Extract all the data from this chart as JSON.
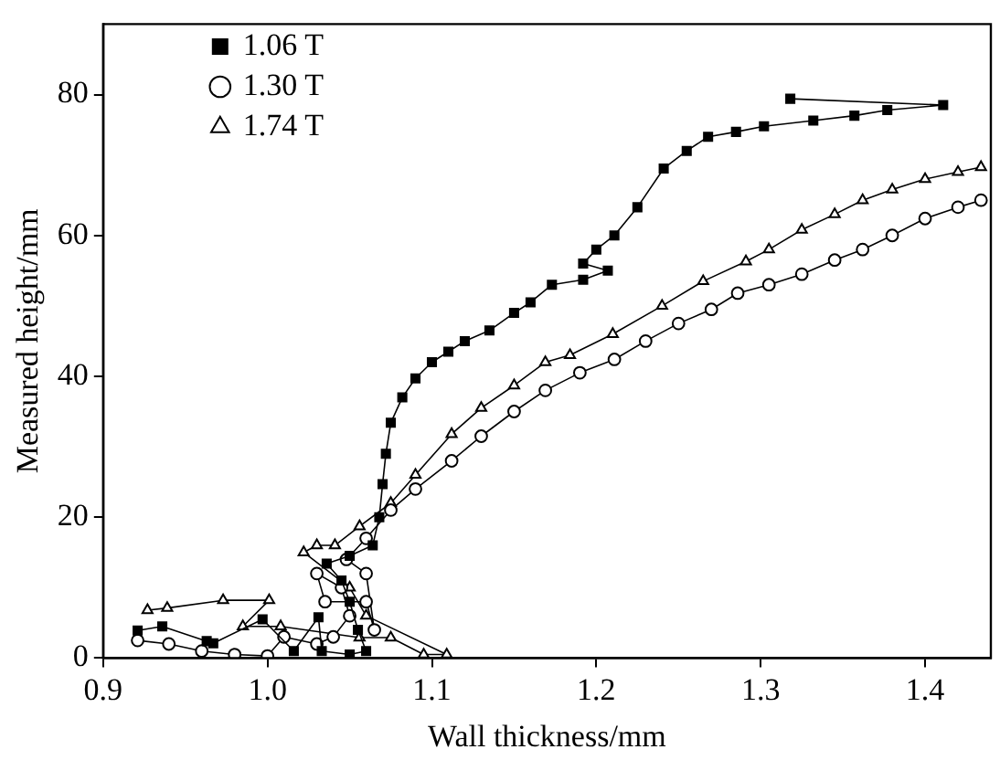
{
  "chart_data": {
    "type": "line",
    "xlabel": "Wall thickness/mm",
    "ylabel": "Measured height/mm",
    "xlim": [
      0.9,
      1.44
    ],
    "ylim": [
      0,
      90
    ],
    "xticks": [
      0.9,
      {
        "value": 1,
        "label": "1.0"
      },
      1.1,
      1.2,
      1.3,
      1.4
    ],
    "yticks": [
      0,
      20,
      40,
      60,
      80
    ],
    "grid": false,
    "legend": "top left",
    "line_style": "solid",
    "series": [
      {
        "name": "1.06 T",
        "color": "#000000",
        "marker": "square",
        "x": [
          0.921,
          0.936,
          0.963,
          0.967,
          0.997,
          1.016,
          1.031,
          1.033,
          1.05,
          1.06,
          1.055,
          1.05,
          1.045,
          1.036,
          1.05,
          1.064,
          1.068,
          1.07,
          1.072,
          1.075,
          1.082,
          1.09,
          1.1,
          1.11,
          1.12,
          1.135,
          1.15,
          1.16,
          1.173,
          1.192,
          1.207,
          1.192,
          1.2,
          1.211,
          1.225,
          1.241,
          1.255,
          1.268,
          1.285,
          1.302,
          1.332,
          1.357,
          1.377,
          1.411,
          1.318
        ],
        "values": [
          3.9,
          4.5,
          2.4,
          2.1,
          5.5,
          1,
          5.8,
          1,
          0.5,
          1,
          4,
          8,
          11,
          13.4,
          14.5,
          16,
          20,
          24.7,
          29,
          33.4,
          37,
          39.7,
          42,
          43.5,
          45,
          46.5,
          49,
          50.5,
          53,
          53.7,
          55,
          56,
          58,
          60,
          64,
          69.5,
          72,
          74,
          74.7,
          75.5,
          76.3,
          77,
          77.8,
          78.5,
          79.4
        ]
      },
      {
        "name": "1.30 T",
        "color": "#000000",
        "marker": "circle",
        "x": [
          0.921,
          0.94,
          0.96,
          0.98,
          1.0,
          1.01,
          1.03,
          1.04,
          1.05,
          1.045,
          1.03,
          1.035,
          1.06,
          1.065,
          1.06,
          1.048,
          1.06,
          1.075,
          1.09,
          1.112,
          1.13,
          1.15,
          1.169,
          1.19,
          1.211,
          1.23,
          1.25,
          1.27,
          1.286,
          1.305,
          1.325,
          1.345,
          1.362,
          1.38,
          1.4,
          1.42,
          1.434
        ],
        "values": [
          2.5,
          2,
          1,
          0.5,
          0.3,
          3,
          2,
          3,
          6,
          10,
          12,
          8,
          8,
          4,
          12,
          14,
          17,
          21,
          24,
          28,
          31.5,
          35,
          38,
          40.5,
          42.4,
          45,
          47.5,
          49.5,
          51.8,
          53,
          54.5,
          56.5,
          58,
          60,
          62.4,
          64,
          65
        ]
      },
      {
        "name": "1.74 T",
        "color": "#000000",
        "marker": "triangle",
        "x": [
          0.927,
          0.939,
          0.973,
          1.001,
          0.985,
          1.008,
          1.056,
          1.075,
          1.095,
          1.109,
          1.06,
          1.05,
          1.022,
          1.03,
          1.041,
          1.056,
          1.075,
          1.09,
          1.112,
          1.13,
          1.15,
          1.169,
          1.184,
          1.21,
          1.24,
          1.265,
          1.291,
          1.305,
          1.325,
          1.345,
          1.362,
          1.38,
          1.4,
          1.42,
          1.434
        ],
        "values": [
          6.8,
          7.1,
          8.2,
          8.2,
          4.5,
          4.5,
          2.9,
          2.9,
          0.5,
          0.5,
          6,
          10,
          15,
          16,
          16,
          18.7,
          22,
          26,
          31.8,
          35.5,
          38.7,
          42,
          43,
          46,
          50,
          53.5,
          56.3,
          58,
          60.8,
          63,
          65,
          66.5,
          68,
          69,
          69.7
        ]
      }
    ]
  }
}
